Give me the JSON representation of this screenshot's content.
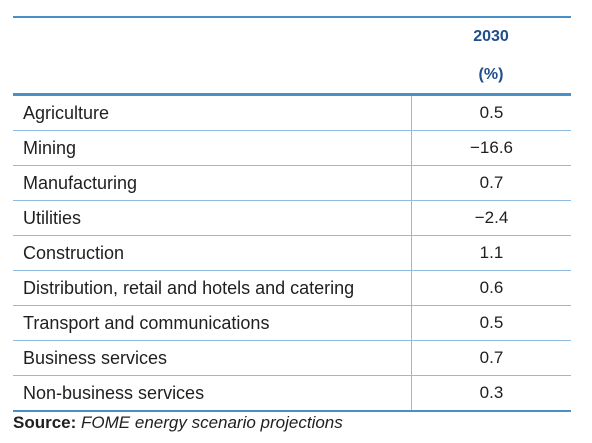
{
  "table": {
    "header": {
      "year": "2030",
      "unit": "(%)"
    },
    "rows": [
      {
        "label": "Agriculture",
        "value": "0.5"
      },
      {
        "label": "Mining",
        "value": "−16.6"
      },
      {
        "label": "Manufacturing",
        "value": "0.7"
      },
      {
        "label": "Utilities",
        "value": "−2.4"
      },
      {
        "label": "Construction",
        "value": "1.1"
      },
      {
        "label": "Distribution, retail and hotels and catering",
        "value": "0.6"
      },
      {
        "label": "Transport and communications",
        "value": "0.5"
      },
      {
        "label": "Business services",
        "value": "0.7"
      },
      {
        "label": "Non-business services",
        "value": "0.3"
      }
    ]
  },
  "source": {
    "label": "Source:",
    "text": "FOME energy scenario projections"
  },
  "colors": {
    "rule": "#4a90c8",
    "header_text": "#1f4e8c"
  }
}
